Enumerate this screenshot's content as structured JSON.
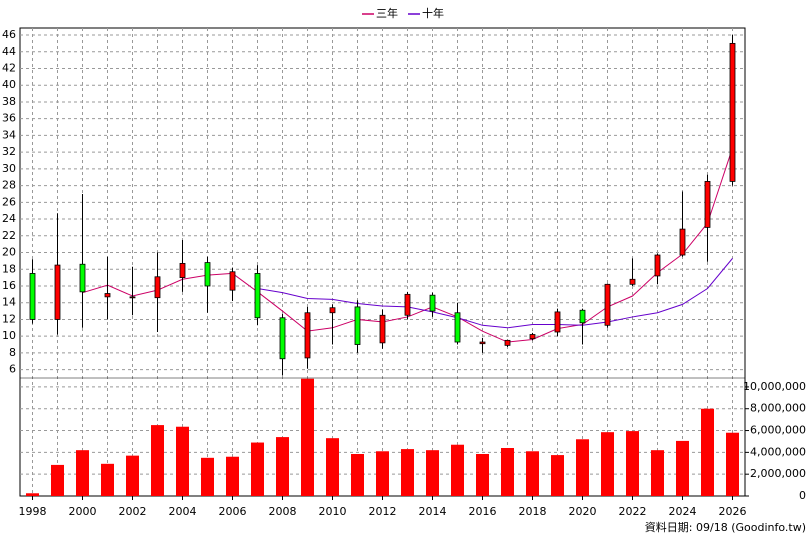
{
  "chart_data": [
    {
      "type": "candlestick",
      "x": [
        1998,
        1999,
        2000,
        2001,
        2002,
        2003,
        2004,
        2005,
        2006,
        2007,
        2008,
        2009,
        2010,
        2011,
        2012,
        2013,
        2014,
        2015,
        2016,
        2017,
        2018,
        2019,
        2020,
        2021,
        2022,
        2023,
        2024,
        2025,
        2026
      ],
      "xlim": [
        1997.5,
        2026.5
      ],
      "xticks": [
        1998,
        2000,
        2002,
        2004,
        2006,
        2008,
        2010,
        2012,
        2014,
        2016,
        2018,
        2020,
        2022,
        2024,
        2026
      ],
      "open": [
        17.5,
        12,
        18.6,
        14.7,
        14.6,
        14.6,
        17,
        18.8,
        15.5,
        17.5,
        12.2,
        7.4,
        12.8,
        13.5,
        9.2,
        12.5,
        14.9,
        12.8,
        9.1,
        8.9,
        9.7,
        10.5,
        13.1,
        11.3,
        16.2,
        17.2,
        19.7,
        23,
        28.5
      ],
      "high": [
        19.2,
        24.7,
        27,
        19.5,
        18.3,
        20,
        21.5,
        19.5,
        18.2,
        18.5,
        12.7,
        13.5,
        13.8,
        14.3,
        13.2,
        15.3,
        15.2,
        14,
        9.8,
        9.6,
        10.4,
        13.3,
        13.3,
        16.3,
        19.3,
        19.9,
        27.3,
        29.3,
        46
      ],
      "low": [
        11.5,
        10.2,
        11,
        12,
        12.5,
        10.5,
        15.3,
        12.8,
        14.2,
        11.3,
        5.3,
        6.1,
        9,
        8,
        8.5,
        12,
        12.3,
        9,
        8,
        8.7,
        9.5,
        10,
        9,
        11,
        16,
        16.2,
        19.5,
        18.9,
        28
      ],
      "close": [
        12,
        18.5,
        15.3,
        15.1,
        14.7,
        17.1,
        18.7,
        16,
        17.7,
        12.2,
        7.3,
        12.8,
        13.4,
        9,
        12.5,
        15,
        13,
        9.3,
        9.3,
        9.5,
        10.2,
        12.9,
        11.6,
        16.2,
        16.8,
        19.7,
        22.8,
        28.5,
        45
      ],
      "up_color": "#ff0000",
      "down_color": "#00ff00",
      "series": [
        {
          "name": "三年",
          "color": "#cc0066",
          "values": [
            null,
            null,
            15.2,
            16.1,
            14.8,
            15.5,
            16.8,
            17.3,
            17.5,
            15.3,
            13,
            10.6,
            11,
            12,
            11.7,
            12.3,
            13.5,
            12.3,
            10.6,
            9.3,
            9.6,
            10.9,
            11.4,
            13.5,
            14.8,
            17.6,
            19.8,
            23.5,
            32.5
          ]
        },
        {
          "name": "十年",
          "color": "#6600cc",
          "values": [
            null,
            null,
            null,
            null,
            null,
            null,
            null,
            null,
            null,
            15.7,
            15.2,
            14.5,
            14.4,
            13.9,
            13.6,
            13.5,
            12.9,
            12.2,
            11.3,
            11,
            11.4,
            11.4,
            11.3,
            11.7,
            12.3,
            12.8,
            13.8,
            15.7,
            19.3
          ]
        }
      ],
      "ylim": [
        5,
        46.6
      ],
      "yticks": [
        6,
        8,
        10,
        12,
        14,
        16,
        18,
        20,
        22,
        24,
        26,
        28,
        30,
        32,
        34,
        36,
        38,
        40,
        42,
        44,
        46
      ],
      "grid": true
    },
    {
      "type": "bar",
      "x": [
        1998,
        1999,
        2000,
        2001,
        2002,
        2003,
        2004,
        2005,
        2006,
        2007,
        2008,
        2009,
        2010,
        2011,
        2012,
        2013,
        2014,
        2015,
        2016,
        2017,
        2018,
        2019,
        2020,
        2021,
        2022,
        2023,
        2024,
        2025,
        2026
      ],
      "values": [
        250000,
        2850000,
        4200000,
        2950000,
        3700000,
        6500000,
        6350000,
        3500000,
        3600000,
        4900000,
        5400000,
        10750000,
        5300000,
        3850000,
        4100000,
        4300000,
        4200000,
        4700000,
        3850000,
        4400000,
        4100000,
        3750000,
        5200000,
        5850000,
        5950000,
        4200000,
        5050000,
        8000000,
        5800000
      ],
      "color": "#ff0000",
      "ylim": [
        0,
        11000000
      ],
      "yticks": [
        0,
        {
          "value": 2000000,
          "label": "2,000,000"
        },
        {
          "value": 4000000,
          "label": "4,000,000"
        },
        {
          "value": 6000000,
          "label": "6,000,000"
        },
        {
          "value": 8000000,
          "label": "8,000,000"
        },
        {
          "value": 10000000,
          "label": "10,000,000"
        }
      ],
      "grid": true
    }
  ],
  "footer": "資料日期: 09/18 (Goodinfo.tw)"
}
